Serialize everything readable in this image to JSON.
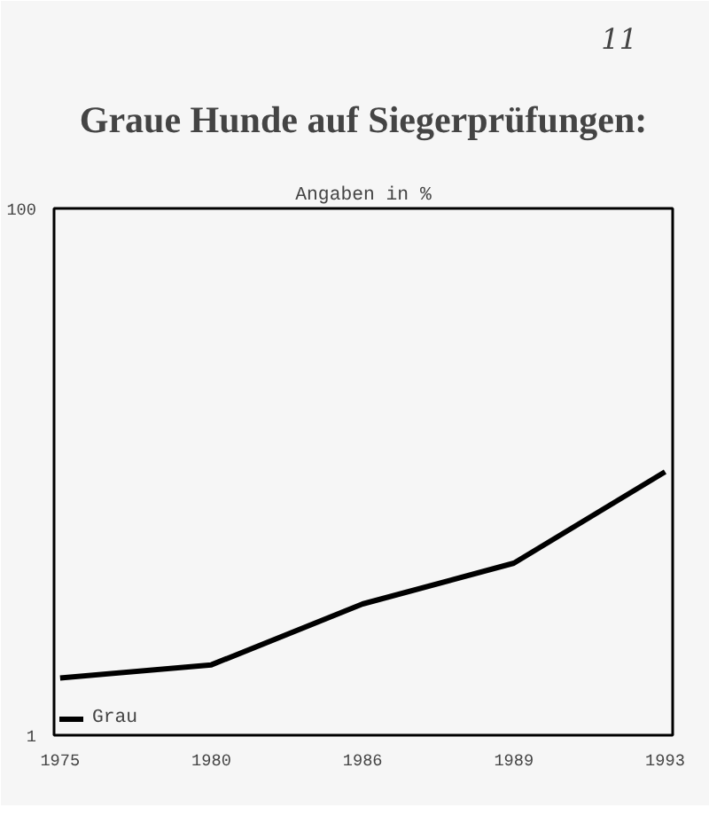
{
  "chart_data": {
    "type": "line",
    "title": "Graue Hunde auf Siegerprüfungen:",
    "subtitle": "Angaben in %",
    "annotations": [
      "11"
    ],
    "categories": [
      "1975",
      "1980",
      "1986",
      "1989",
      "1993"
    ],
    "series": [
      {
        "name": "Grau",
        "color": "#000000",
        "values": [
          1.65,
          1.85,
          3.15,
          4.5,
          10
        ]
      }
    ],
    "ylim": [
      1,
      100
    ],
    "yticks": [
      1,
      100
    ],
    "log": true,
    "grid": false,
    "legend": "bottom left",
    "line_style": "solid"
  }
}
